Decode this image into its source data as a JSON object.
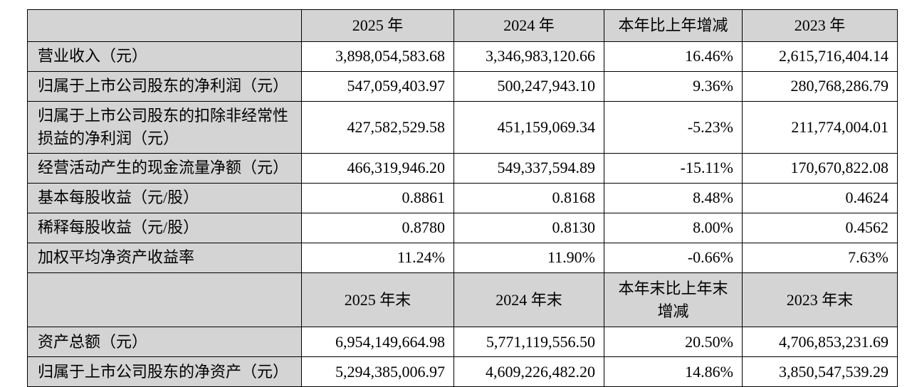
{
  "colors": {
    "header_bg": "#d4d4d4",
    "cell_bg": "#ffffff",
    "border": "#000000",
    "text": "#000000"
  },
  "table": {
    "sections": [
      {
        "header": {
          "label": "",
          "cols": [
            "2025 年",
            "2024 年",
            "本年比上年增减",
            "2023 年"
          ]
        },
        "rows": [
          {
            "label": "营业收入（元）",
            "values": [
              "3,898,054,583.68",
              "3,346,983,120.66",
              "16.46%",
              "2,615,716,404.14"
            ]
          },
          {
            "label": "归属于上市公司股东的净利润（元）",
            "values": [
              "547,059,403.97",
              "500,247,943.10",
              "9.36%",
              "280,768,286.79"
            ]
          },
          {
            "label": "归属于上市公司股东的扣除非经常性损益的净利润（元）",
            "values": [
              "427,582,529.58",
              "451,159,069.34",
              "-5.23%",
              "211,774,004.01"
            ]
          },
          {
            "label": "经营活动产生的现金流量净额（元）",
            "values": [
              "466,319,946.20",
              "549,337,594.89",
              "-15.11%",
              "170,670,822.08"
            ]
          },
          {
            "label": "基本每股收益（元/股）",
            "values": [
              "0.8861",
              "0.8168",
              "8.48%",
              "0.4624"
            ]
          },
          {
            "label": "稀释每股收益（元/股）",
            "values": [
              "0.8780",
              "0.8130",
              "8.00%",
              "0.4562"
            ]
          },
          {
            "label": "加权平均净资产收益率",
            "values": [
              "11.24%",
              "11.90%",
              "-0.66%",
              "7.63%"
            ]
          }
        ]
      },
      {
        "header": {
          "label": "",
          "cols": [
            "2025 年末",
            "2024 年末",
            "本年末比上年末增减",
            "2023 年末"
          ]
        },
        "rows": [
          {
            "label": "资产总额（元）",
            "values": [
              "6,954,149,664.98",
              "5,771,119,556.50",
              "20.50%",
              "4,706,853,231.69"
            ]
          },
          {
            "label": "归属于上市公司股东的净资产（元）",
            "values": [
              "5,294,385,006.97",
              "4,609,226,482.20",
              "14.86%",
              "3,850,547,539.29"
            ]
          }
        ]
      }
    ]
  }
}
